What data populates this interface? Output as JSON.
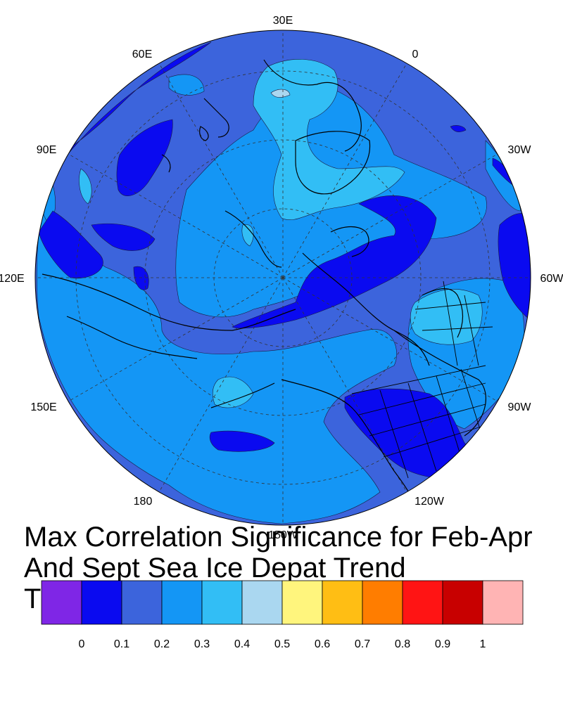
{
  "title": {
    "line1": "Max Correlation Significance for Feb-Apr",
    "line2": "And Sept Sea Ice Depat Trend",
    "line3": "T"
  },
  "map": {
    "projection": "north-polar-stereographic",
    "longitude_labels": [
      "30E",
      "0",
      "30W",
      "60W",
      "90W",
      "120W",
      "150W",
      "180",
      "150E",
      "120E",
      "90E",
      "60E"
    ],
    "fill_colors": {
      "0.0-0.1": "#0a0af0",
      "0.1-0.2": "#3c64dc",
      "0.2-0.3": "#1496f5",
      "0.3-0.4": "#32bef5"
    }
  },
  "colorbar": {
    "colors": [
      "#7f26e6",
      "#0a0af0",
      "#3c64dc",
      "#1496f5",
      "#32bef5",
      "#aad7f0",
      "#fff57d",
      "#ffbe14",
      "#ff7d00",
      "#ff1414",
      "#c80000",
      "#ffb4b4"
    ],
    "labels": [
      "0",
      "0.1",
      "0.2",
      "0.3",
      "0.4",
      "0.5",
      "0.6",
      "0.7",
      "0.8",
      "0.9",
      "1"
    ]
  }
}
